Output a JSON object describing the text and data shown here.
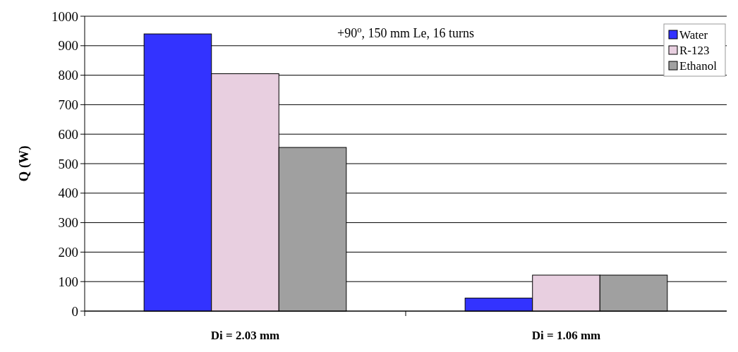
{
  "chart_data": {
    "type": "bar",
    "categories": [
      "Di = 2.03 mm",
      "Di = 1.06 mm"
    ],
    "ylabel": "Q (W)",
    "annotations": [
      "+90$^{o}$, 150 mm Le, 16 turns"
    ],
    "series": [
      {
        "name": "Water",
        "color": "#3333ff",
        "values": [
          940,
          44
        ]
      },
      {
        "name": "R-123",
        "color": "#e8cfe0",
        "values": [
          805,
          122
        ]
      },
      {
        "name": "Ethanol",
        "color": "#a0a0a0",
        "values": [
          555,
          122
        ]
      }
    ],
    "ylim": [
      0,
      1000
    ],
    "yticks": [
      0,
      100,
      200,
      300,
      400,
      500,
      600,
      700,
      800,
      900,
      1000
    ],
    "grid": "y",
    "legend": "top right"
  }
}
